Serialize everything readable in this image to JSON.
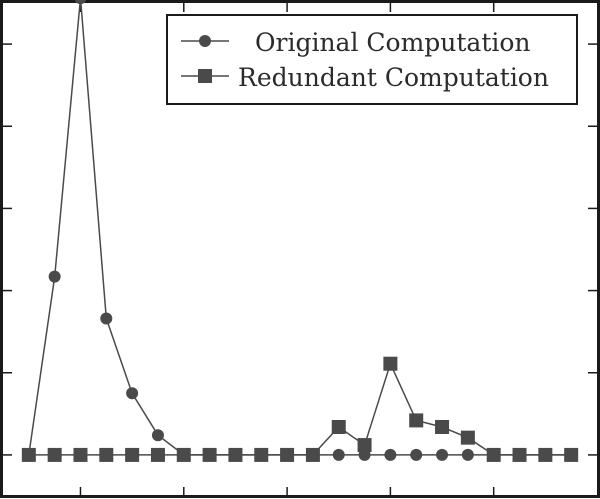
{
  "chart_data": {
    "type": "line",
    "title": "",
    "xlabel": "",
    "ylabel": "",
    "x": [
      1,
      2,
      3,
      4,
      5,
      6,
      7,
      8,
      9,
      10,
      11,
      12,
      13,
      14,
      15,
      16,
      17,
      18,
      19,
      20,
      21,
      22
    ],
    "xlim": [
      0,
      23
    ],
    "ylim": [
      -0.5,
      5.5
    ],
    "x_ticks": [
      3,
      7,
      11,
      15,
      19
    ],
    "y_ticks": [
      0,
      1,
      2,
      3,
      4,
      5
    ],
    "grid": false,
    "legend_position": "top-right",
    "series": [
      {
        "name": "Original Computation",
        "marker": "circle",
        "color": "#4a4a4a",
        "values": [
          0,
          2.17,
          5.56,
          1.66,
          0.75,
          0.24,
          0,
          0,
          0,
          0,
          0,
          0,
          0,
          0,
          0,
          0,
          0,
          0,
          0,
          0,
          0,
          0
        ]
      },
      {
        "name": "Redundant Computation",
        "marker": "square",
        "color": "#4a4a4a",
        "values": [
          0,
          0,
          0,
          0,
          0,
          0,
          0,
          0,
          0,
          0,
          0,
          0,
          0.34,
          0.12,
          1.11,
          0.42,
          0.34,
          0.21,
          0,
          0,
          0,
          0
        ]
      }
    ]
  }
}
